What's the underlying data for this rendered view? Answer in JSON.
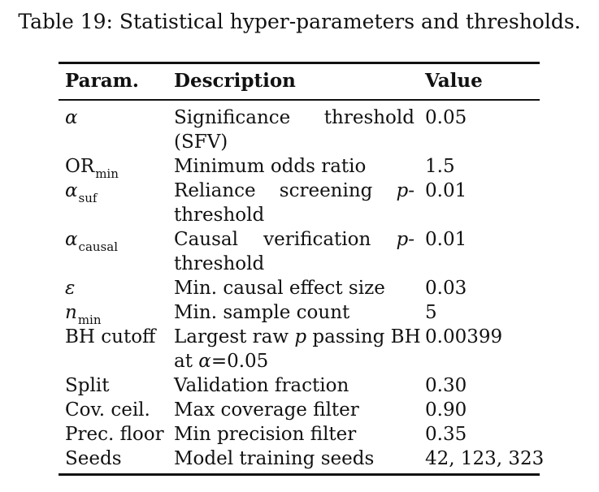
{
  "caption": "Table 19: Statistical hyper-parameters and thresholds.",
  "headers": {
    "param": "Param.",
    "description": "Description",
    "value": "Value"
  },
  "rows": [
    {
      "param": "α",
      "desc1_parts": [
        "Significance",
        "threshold"
      ],
      "desc2": "(SFV)",
      "value": "0.05"
    },
    {
      "param_base": "OR",
      "param_sub": "min",
      "desc1": "Minimum odds ratio",
      "value": "1.5"
    },
    {
      "param_base": "α",
      "param_sub": "suf",
      "desc1_parts": [
        "Reliance",
        "screening",
        "p-"
      ],
      "desc2": "threshold",
      "value": "0.01"
    },
    {
      "param_base": "α",
      "param_sub": "causal",
      "desc1_parts": [
        "Causal",
        "verification",
        "p-"
      ],
      "desc2": "threshold",
      "value": "0.01"
    },
    {
      "param": "ε",
      "desc1": "Min. causal effect size",
      "value": "0.03"
    },
    {
      "param_base": "n",
      "param_sub": "min",
      "desc1": "Min. sample count",
      "value": "5"
    },
    {
      "param": "BH cutoff",
      "desc1_a": "Largest raw ",
      "desc1_p": "p",
      "desc1_b": " passing BH",
      "desc2_a": "at ",
      "desc2_alpha": "α",
      "desc2_b": "=0.05",
      "value": "0.00399"
    },
    {
      "param": "Split",
      "desc1": "Validation fraction",
      "value": "0.30"
    },
    {
      "param": "Cov. ceil.",
      "desc1": "Max coverage filter",
      "value": "0.90"
    },
    {
      "param": "Prec. floor",
      "desc1": "Min precision filter",
      "value": "0.35"
    },
    {
      "param": "Seeds",
      "desc1": "Model training seeds",
      "value": "42, 123, 323"
    }
  ]
}
